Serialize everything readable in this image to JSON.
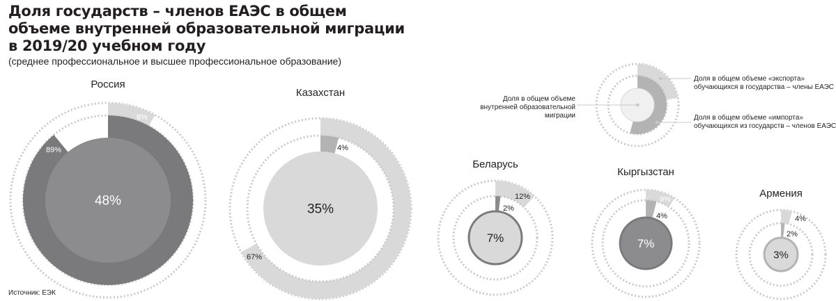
{
  "title_lines": [
    "Доля государств – членов ЕАЭС в общем",
    "объеме внутренней образовательной миграции",
    "в 2019/20 учебном году"
  ],
  "subtitle": "(среднее профессиональное и высшее профессиональное образование)",
  "source": "Источник: ЕЭК",
  "colors": {
    "dark": "#8c8c8e",
    "darker": "#7a7a7c",
    "light": "#d9d9d9",
    "mid": "#b3b3b3",
    "dots": "#c8c8c8",
    "text_light": "#ffffff",
    "text_dark": "#231f20"
  },
  "legend": {
    "center_label": "Доля в общем объеме внутренней образовательной миграции",
    "center_lines": [
      "Доля в общем объеме",
      "внутренней образовательной",
      "миграции"
    ],
    "export_lines": [
      "Доля в общем объеме «экспорта»",
      "обучающихся в государства – члены ЕАЭС"
    ],
    "import_lines": [
      "Доля в общем объеме «импорта»",
      "обучающихся из государств – членов ЕАЭС"
    ]
  },
  "chart_data": {
    "type": "pie",
    "title": "Доля государств – членов ЕАЭС в общем объеме внутренней образовательной миграции в 2019/20 учебном году",
    "series_names": {
      "share": "Доля в общем объеме внутренней образовательной миграции",
      "export": "Доля в общем объеме «экспорта» обучающихся в государства – члены ЕАЭС",
      "import": "Доля в общем объеме «импорта» обучающихся из государств – членов ЕАЭС"
    },
    "countries": [
      {
        "name": "Россия",
        "share": 48,
        "export_pct": 8,
        "import_pct": 89,
        "share_label": "48%",
        "export_label": "8%",
        "import_label": "89%"
      },
      {
        "name": "Казахстан",
        "share": 35,
        "export_pct": 67,
        "import_pct": 4,
        "share_label": "35%",
        "export_label": "67%",
        "import_label": "4%"
      },
      {
        "name": "Беларусь",
        "share": 7,
        "export_pct": 12,
        "import_pct": 2,
        "share_label": "7%",
        "export_label": "12%",
        "import_label": "2%"
      },
      {
        "name": "Кыргызстан",
        "share": 7,
        "export_pct": 9,
        "import_pct": 4,
        "share_label": "7%",
        "export_label": "9%",
        "import_label": "4%"
      },
      {
        "name": "Армения",
        "share": 3,
        "export_pct": 4,
        "import_pct": 2,
        "share_label": "3%",
        "export_label": "4%",
        "import_label": "2%"
      }
    ]
  }
}
